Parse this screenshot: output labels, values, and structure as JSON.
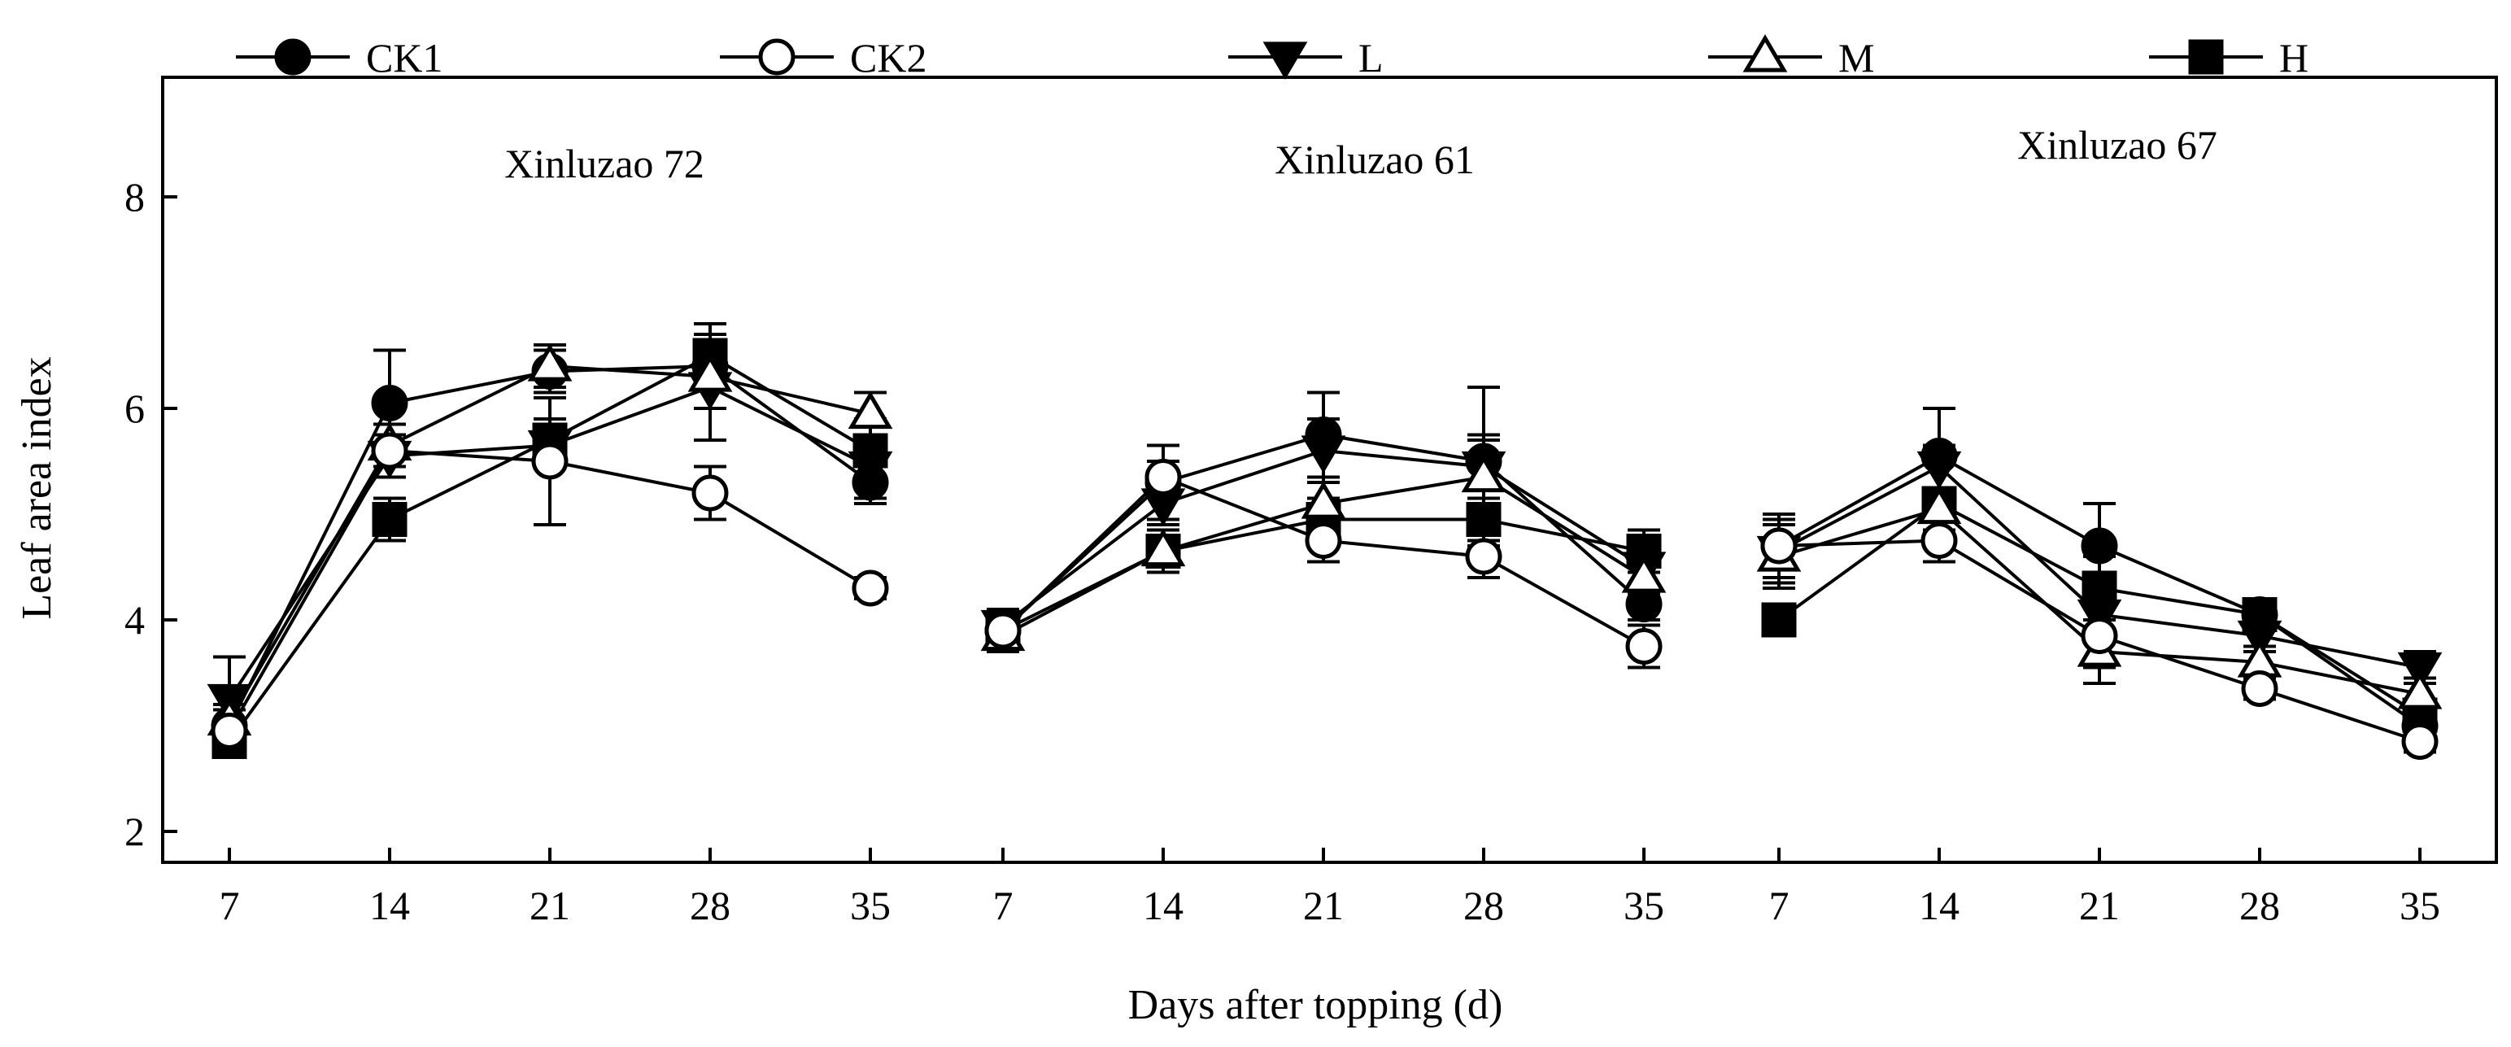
{
  "chart_data": {
    "type": "line",
    "xlabel": "Days after topping (d)",
    "ylabel": "Leaf area index",
    "ylim": [
      2,
      9
    ],
    "yticks": [
      2,
      4,
      6,
      8
    ],
    "x": [
      7,
      14,
      21,
      28,
      35
    ],
    "error_bars": true,
    "grid": false,
    "legend_position": "top",
    "legend": [
      {
        "name": "CK1",
        "marker": "filled-circle"
      },
      {
        "name": "CK2",
        "marker": "open-circle"
      },
      {
        "name": "L",
        "marker": "filled-triangle-down"
      },
      {
        "name": "M",
        "marker": "open-triangle-up"
      },
      {
        "name": "H",
        "marker": "filled-square"
      }
    ],
    "panels": [
      {
        "title": "Xinluzao 72",
        "series": [
          {
            "name": "CK1",
            "values": [
              3.0,
              6.05,
              6.35,
              6.4,
              5.3
            ],
            "errors": [
              0.15,
              0.5,
              0.2,
              0.2,
              0.2
            ]
          },
          {
            "name": "CK2",
            "values": [
              2.95,
              5.6,
              5.5,
              5.2,
              4.3
            ],
            "errors": [
              0.1,
              0.15,
              0.6,
              0.25,
              0.1
            ]
          },
          {
            "name": "L",
            "values": [
              3.25,
              5.55,
              5.65,
              6.2,
              5.45
            ],
            "errors": [
              0.4,
              0.2,
              0.2,
              0.5,
              0.3
            ]
          },
          {
            "name": "M",
            "values": [
              3.05,
              5.65,
              6.4,
              6.3,
              5.95
            ],
            "errors": [
              0.15,
              0.2,
              0.2,
              0.3,
              0.2
            ]
          },
          {
            "name": "H",
            "values": [
              2.85,
              4.95,
              5.7,
              6.5,
              5.6
            ],
            "errors": [
              0.1,
              0.2,
              0.2,
              0.3,
              0.3
            ]
          }
        ]
      },
      {
        "title": "Xinluzao 61",
        "series": [
          {
            "name": "CK1",
            "values": [
              3.9,
              5.3,
              5.75,
              5.5,
              4.15
            ],
            "errors": [
              0.2,
              0.35,
              0.4,
              0.25,
              0.15
            ]
          },
          {
            "name": "CK2",
            "values": [
              3.9,
              5.35,
              4.75,
              4.6,
              3.75
            ],
            "errors": [
              0.15,
              0.15,
              0.2,
              0.2,
              0.2
            ]
          },
          {
            "name": "L",
            "values": [
              3.95,
              5.1,
              5.6,
              5.45,
              4.5
            ],
            "errors": [
              0.15,
              0.2,
              0.3,
              0.75,
              0.25
            ]
          },
          {
            "name": "M",
            "values": [
              3.85,
              4.65,
              5.1,
              5.35,
              4.4
            ],
            "errors": [
              0.15,
              0.2,
              0.2,
              0.35,
              0.2
            ]
          },
          {
            "name": "H",
            "values": [
              3.9,
              4.65,
              4.95,
              4.95,
              4.65
            ],
            "errors": [
              0.2,
              0.15,
              0.2,
              0.2,
              0.2
            ]
          }
        ]
      },
      {
        "title": "Xinluzao 67",
        "series": [
          {
            "name": "CK1",
            "values": [
              4.7,
              5.55,
              4.7,
              4.05,
              3.0
            ],
            "errors": [
              0.3,
              0.45,
              0.4,
              0.15,
              0.15
            ]
          },
          {
            "name": "CK2",
            "values": [
              4.7,
              4.75,
              3.85,
              3.35,
              2.85
            ],
            "errors": [
              0.2,
              0.2,
              0.3,
              0.1,
              0.1
            ]
          },
          {
            "name": "L",
            "values": [
              4.65,
              5.45,
              4.05,
              3.85,
              3.55
            ],
            "errors": [
              0.3,
              0.2,
              0.25,
              0.15,
              0.15
            ]
          },
          {
            "name": "M",
            "values": [
              4.6,
              5.05,
              3.7,
              3.6,
              3.3
            ],
            "errors": [
              0.3,
              0.2,
              0.3,
              0.15,
              0.15
            ]
          },
          {
            "name": "H",
            "values": [
              4.0,
              5.1,
              4.3,
              4.05,
              3.1
            ],
            "errors": [
              0.1,
              0.15,
              0.3,
              0.15,
              0.15
            ]
          }
        ]
      }
    ]
  }
}
